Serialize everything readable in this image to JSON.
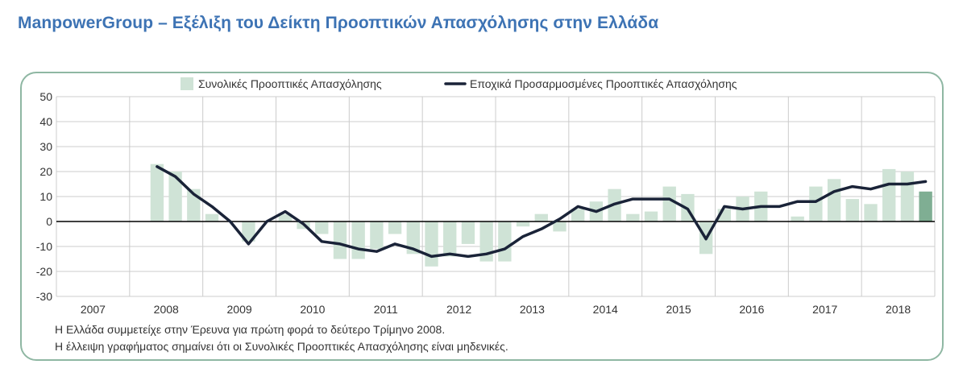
{
  "title": "ManpowerGroup – Εξέλιξη του Δείκτη Προοπτικών Απασχόλησης στην Ελλάδα",
  "notes": [
    "Η Ελλάδα συμμετείχε στην Έρευνα για πρώτη φορά το δεύτερο Τρίμηνο 2008.",
    "Η έλλειψη γραφήματος σημαίνει ότι οι Συνολικές Προοπτικές Απασχόλησης είναι μηδενικές."
  ],
  "colors": {
    "bar": "#cfe3d6",
    "bar_latest": "#7fae93",
    "line": "#1a2338",
    "frame": "#8fb7a3",
    "title": "#3d73b4",
    "grid": "#cccccc"
  },
  "chart_data": {
    "type": "bar+line",
    "ylim": [
      -30,
      50
    ],
    "yticks": [
      50,
      40,
      30,
      20,
      10,
      0,
      -10,
      -20,
      -30
    ],
    "years": [
      "2007",
      "2008",
      "2009",
      "2010",
      "2011",
      "2012",
      "2013",
      "2014",
      "2015",
      "2016",
      "2017",
      "2018"
    ],
    "quarters_per_year": 4,
    "first_quarter": {
      "year": "2008",
      "quarter": 2
    },
    "legend": {
      "bars": "Συνολικές Προοπτικές Απασχόλησης",
      "line": "Εποχικά Προσαρμοσμένες Προοπτικές Απασχόλησης"
    },
    "series": [
      {
        "name": "Συνολικές Προοπτικές Απασχόλησης",
        "kind": "bar",
        "values": [
          23,
          20,
          13,
          3,
          0,
          -8,
          0,
          3,
          -3,
          -5,
          -15,
          -15,
          -11,
          -5,
          -13,
          -18,
          -14,
          -9,
          -16,
          -16,
          -2,
          3,
          -4,
          5,
          8,
          13,
          3,
          4,
          14,
          11,
          -13,
          5,
          10,
          12,
          0,
          2,
          14,
          17,
          9,
          7,
          21,
          20,
          12
        ],
        "highlight_last": true
      },
      {
        "name": "Εποχικά Προσαρμοσμένες Προοπτικές Απασχόλησης",
        "kind": "line",
        "values": [
          22,
          18,
          11,
          6,
          0,
          -9,
          0,
          4,
          -1,
          -8,
          -9,
          -11,
          -12,
          -9,
          -11,
          -14,
          -13,
          -14,
          -13,
          -11,
          -6,
          -3,
          1,
          6,
          4,
          7,
          9,
          9,
          9,
          5,
          -7,
          6,
          5,
          6,
          6,
          8,
          8,
          12,
          14,
          13,
          15,
          15,
          16
        ]
      }
    ]
  }
}
